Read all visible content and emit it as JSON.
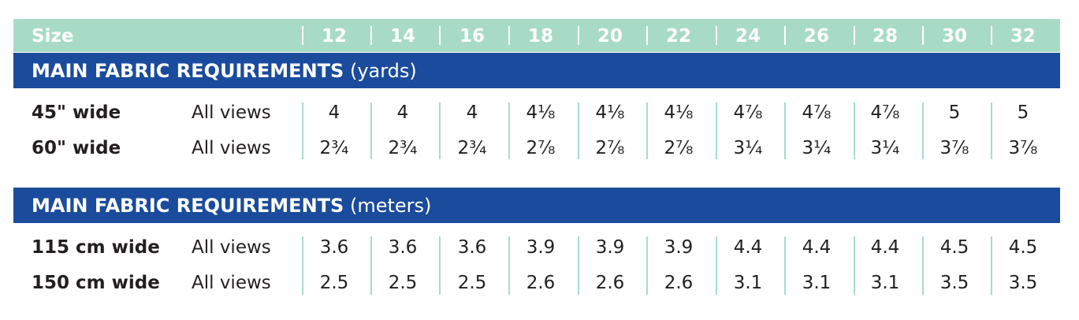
{
  "header": {
    "size_label": "Size",
    "sizes": [
      "12",
      "14",
      "16",
      "18",
      "20",
      "22",
      "24",
      "26",
      "28",
      "30",
      "32"
    ]
  },
  "sections": [
    {
      "title": "MAIN FABRIC REQUIREMENTS",
      "unit": "(yards)",
      "rows": [
        {
          "label": "45\" wide",
          "views": "All views",
          "values": [
            "4",
            "4",
            "4",
            "4⅛",
            "4⅛",
            "4⅛",
            "4⅞",
            "4⅞",
            "4⅞",
            "5",
            "5"
          ]
        },
        {
          "label": "60\" wide",
          "views": "All views",
          "values": [
            "2¾",
            "2¾",
            "2¾",
            "2⅞",
            "2⅞",
            "2⅞",
            "3¼",
            "3¼",
            "3¼",
            "3⅞",
            "3⅞"
          ]
        }
      ]
    },
    {
      "title": "MAIN FABRIC REQUIREMENTS",
      "unit": "(meters)",
      "rows": [
        {
          "label": "115 cm wide",
          "views": "All views",
          "values": [
            "3.6",
            "3.6",
            "3.6",
            "3.9",
            "3.9",
            "3.9",
            "4.4",
            "4.4",
            "4.4",
            "4.5",
            "4.5"
          ]
        },
        {
          "label": "150 cm wide",
          "views": "All views",
          "values": [
            "2.5",
            "2.5",
            "2.5",
            "2.6",
            "2.6",
            "2.6",
            "3.1",
            "3.1",
            "3.1",
            "3.5",
            "3.5"
          ]
        }
      ]
    }
  ],
  "colors": {
    "size_bar": "#a8dbc6",
    "section_bar": "#1a4b9c",
    "text": "#231f20"
  }
}
